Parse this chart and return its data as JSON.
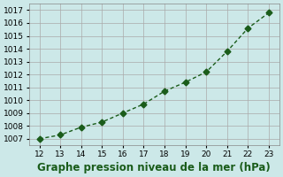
{
  "x": [
    12,
    13,
    14,
    15,
    16,
    17,
    18,
    19,
    20,
    21,
    22,
    23
  ],
  "y": [
    1007.0,
    1007.3,
    1007.9,
    1008.3,
    1009.0,
    1009.7,
    1010.7,
    1011.4,
    1012.2,
    1013.8,
    1015.6,
    1016.8
  ],
  "xlabel": "Graphe pression niveau de la mer (hPa)",
  "xlim": [
    11.5,
    23.5
  ],
  "ylim": [
    1006.5,
    1017.5
  ],
  "yticks": [
    1007,
    1008,
    1009,
    1010,
    1011,
    1012,
    1013,
    1014,
    1015,
    1016,
    1017
  ],
  "xticks": [
    12,
    13,
    14,
    15,
    16,
    17,
    18,
    19,
    20,
    21,
    22,
    23
  ],
  "line_color": "#1a5c1a",
  "marker_color": "#1a5c1a",
  "bg_color": "#cce8e8",
  "grid_color": "#aaaaaa",
  "xlabel_color": "#1a5c1a",
  "xlabel_fontsize": 8.5
}
